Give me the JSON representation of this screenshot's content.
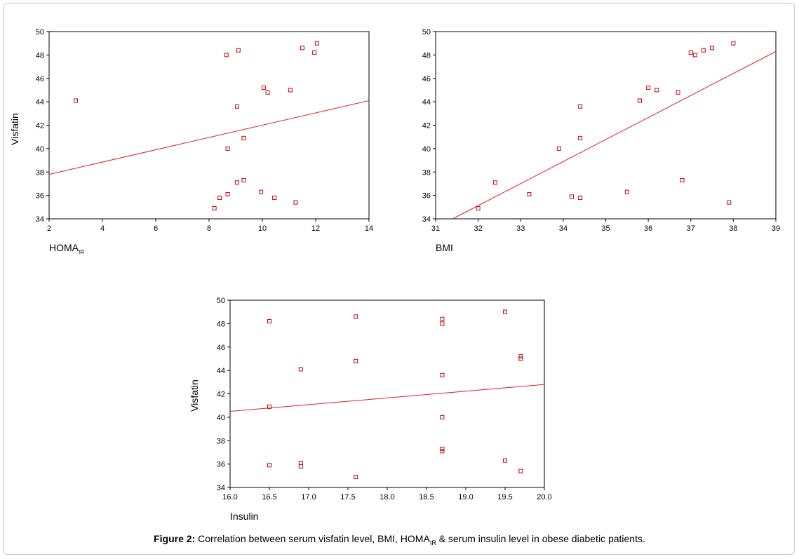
{
  "caption": {
    "label": "Figure 2:",
    "text_a": "Correlation between serum visfatin level, BMI, HOMA",
    "text_sub": "IR",
    "text_b": " & serum insulin level in obese diabetic patients."
  },
  "colors": {
    "marker": "#cc0000",
    "line": "#e02020",
    "axis": "#000000"
  },
  "chart_data": [
    {
      "type": "scatter",
      "xlabel": "HOMA",
      "xlabel_sub": "IR",
      "ylabel": "Visfatin",
      "xlim": [
        2,
        14
      ],
      "ylim": [
        34,
        50
      ],
      "xticks": [
        "2",
        "4",
        "6",
        "8",
        "10",
        "12",
        "14"
      ],
      "yticks": [
        "34",
        "36",
        "38",
        "40",
        "42",
        "44",
        "46",
        "48",
        "50"
      ],
      "points": [
        [
          3.0,
          44.1
        ],
        [
          8.65,
          48.0
        ],
        [
          9.1,
          48.4
        ],
        [
          10.05,
          45.2
        ],
        [
          10.2,
          44.8
        ],
        [
          11.05,
          45.0
        ],
        [
          11.5,
          48.6
        ],
        [
          11.95,
          48.2
        ],
        [
          12.05,
          49.0
        ],
        [
          9.05,
          43.6
        ],
        [
          9.3,
          40.9
        ],
        [
          8.7,
          40.0
        ],
        [
          8.2,
          34.9
        ],
        [
          8.4,
          35.8
        ],
        [
          8.7,
          36.1
        ],
        [
          9.05,
          37.1
        ],
        [
          9.3,
          37.3
        ],
        [
          9.95,
          36.3
        ],
        [
          10.45,
          35.8
        ],
        [
          11.25,
          35.4
        ]
      ],
      "fit_line": [
        [
          2,
          37.8
        ],
        [
          14,
          44.1
        ]
      ]
    },
    {
      "type": "scatter",
      "xlabel": "BMI",
      "xlabel_sub": "",
      "ylabel": "",
      "xlim": [
        31,
        39
      ],
      "ylim": [
        34,
        50
      ],
      "xticks": [
        "31",
        "32",
        "33",
        "34",
        "35",
        "36",
        "37",
        "38",
        "39"
      ],
      "yticks": [
        "34",
        "36",
        "38",
        "40",
        "42",
        "44",
        "46",
        "48",
        "50"
      ],
      "points": [
        [
          32.0,
          34.9
        ],
        [
          32.4,
          37.1
        ],
        [
          33.2,
          36.1
        ],
        [
          33.9,
          40.0
        ],
        [
          34.2,
          35.9
        ],
        [
          34.4,
          35.8
        ],
        [
          34.4,
          40.9
        ],
        [
          34.4,
          43.6
        ],
        [
          35.5,
          36.3
        ],
        [
          35.8,
          44.1
        ],
        [
          36.0,
          45.2
        ],
        [
          36.2,
          45.0
        ],
        [
          36.7,
          44.8
        ],
        [
          36.8,
          37.3
        ],
        [
          37.0,
          48.2
        ],
        [
          37.1,
          48.0
        ],
        [
          37.3,
          48.4
        ],
        [
          37.5,
          48.6
        ],
        [
          37.9,
          35.4
        ],
        [
          38.0,
          49.0
        ]
      ],
      "fit_line": [
        [
          31.4,
          34.0
        ],
        [
          39,
          48.3
        ]
      ]
    },
    {
      "type": "scatter",
      "xlabel": "Insulin",
      "xlabel_sub": "",
      "ylabel": "Visfatin",
      "xlim": [
        16,
        20
      ],
      "ylim": [
        34,
        50
      ],
      "xticks": [
        "16.0",
        "16.5",
        "17.0",
        "17.5",
        "18.0",
        "18.5",
        "19.0",
        "19.5",
        "20.0"
      ],
      "yticks": [
        "34",
        "36",
        "38",
        "40",
        "42",
        "44",
        "46",
        "48",
        "50"
      ],
      "points": [
        [
          16.5,
          48.2
        ],
        [
          16.5,
          40.9
        ],
        [
          16.5,
          35.9
        ],
        [
          16.9,
          44.1
        ],
        [
          16.9,
          36.1
        ],
        [
          16.9,
          35.8
        ],
        [
          17.6,
          48.6
        ],
        [
          17.6,
          44.8
        ],
        [
          17.6,
          34.9
        ],
        [
          18.7,
          48.4
        ],
        [
          18.7,
          48.0
        ],
        [
          18.7,
          43.6
        ],
        [
          18.7,
          40.0
        ],
        [
          18.7,
          37.3
        ],
        [
          18.7,
          37.1
        ],
        [
          19.5,
          49.0
        ],
        [
          19.5,
          36.3
        ],
        [
          19.7,
          45.2
        ],
        [
          19.7,
          45.0
        ],
        [
          19.7,
          35.4
        ]
      ],
      "fit_line": [
        [
          16,
          40.5
        ],
        [
          20,
          42.8
        ]
      ]
    }
  ]
}
